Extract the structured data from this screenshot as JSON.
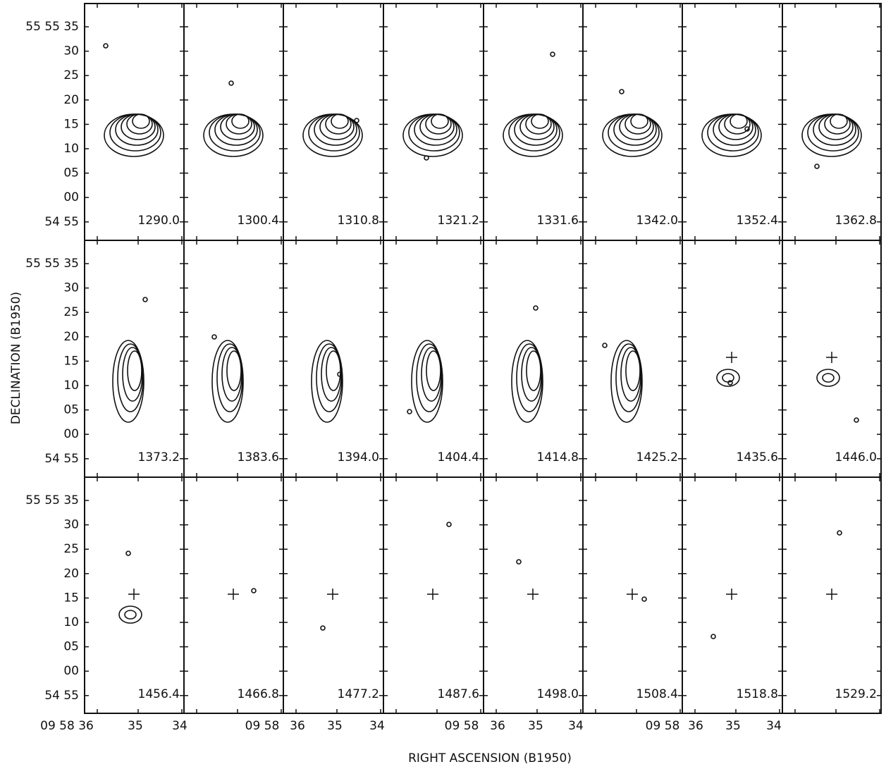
{
  "figure": {
    "y_axis_label": "DECLINATION (B1950)",
    "x_axis_label": "RIGHT ASCENSION (B1950)",
    "y_tick_labels": [
      "55 55 35",
      "30",
      "25",
      "20",
      "15",
      "10",
      "05",
      "00",
      "54 55"
    ],
    "x_tick_labels": [
      "09 58 36",
      "35",
      "34",
      "09 58",
      "36",
      "35",
      "34",
      "09 58",
      "36",
      "35",
      "34",
      "09 58",
      "36",
      "35",
      "34"
    ],
    "panels": [
      "1290.0",
      "1300.4",
      "1310.8",
      "1321.2",
      "1331.6",
      "1342.0",
      "1352.4",
      "1362.8",
      "1373.2",
      "1383.6",
      "1394.0",
      "1404.4",
      "1414.8",
      "1425.2",
      "1435.6",
      "1446.0",
      "1456.4",
      "1466.8",
      "1477.2",
      "1487.6",
      "1498.0",
      "1508.4",
      "1518.8",
      "1529.2"
    ]
  }
}
